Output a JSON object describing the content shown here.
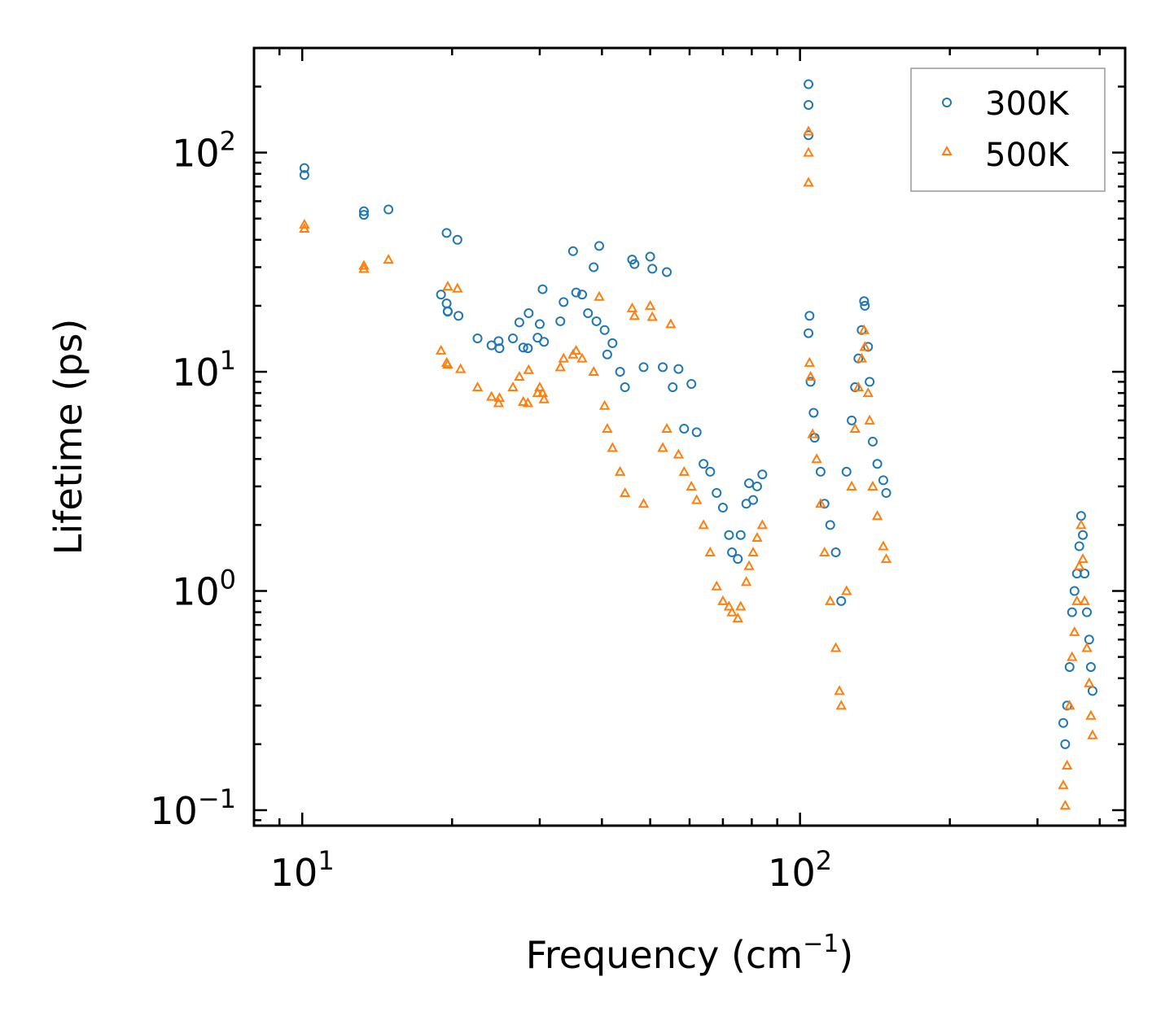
{
  "chart_data": {
    "type": "scatter",
    "title": "",
    "xlabel": "Frequency (cm",
    "xlabel_exp": "−1",
    "xlabel_close": ")",
    "ylabel": "Lifetime (ps)",
    "xscale": "log",
    "yscale": "log",
    "xlim": [
      8.0,
      450
    ],
    "ylim": [
      0.085,
      300
    ],
    "x_ticks": [
      {
        "value": 10,
        "base": "10",
        "exp": "1"
      },
      {
        "value": 100,
        "base": "10",
        "exp": "2"
      }
    ],
    "y_ticks": [
      {
        "value": 0.1,
        "base": "10",
        "exp": "−1"
      },
      {
        "value": 1,
        "base": "10",
        "exp": "0"
      },
      {
        "value": 10,
        "base": "10",
        "exp": "1"
      },
      {
        "value": 100,
        "base": "10",
        "exp": "2"
      }
    ],
    "legend_position": "top-right",
    "series": [
      {
        "name": "300K",
        "marker": "circle",
        "color": "#1f77b4",
        "points": [
          [
            10.1,
            85
          ],
          [
            10.1,
            79
          ],
          [
            13.3,
            54
          ],
          [
            13.3,
            52
          ],
          [
            14.9,
            55
          ],
          [
            19.0,
            22.5
          ],
          [
            19.5,
            20.5
          ],
          [
            19.6,
            18.8
          ],
          [
            19.6,
            18.9
          ],
          [
            19.5,
            43
          ],
          [
            20.5,
            40
          ],
          [
            20.6,
            18
          ],
          [
            22.5,
            14.2
          ],
          [
            24.0,
            13.2
          ],
          [
            24.8,
            13.8
          ],
          [
            24.9,
            12.8
          ],
          [
            26.5,
            14.2
          ],
          [
            27.3,
            16.8
          ],
          [
            27.8,
            12.9
          ],
          [
            28.4,
            12.8
          ],
          [
            28.5,
            18.5
          ],
          [
            29.7,
            14.3
          ],
          [
            30.0,
            16.5
          ],
          [
            30.4,
            23.8
          ],
          [
            30.6,
            13.7
          ],
          [
            33.0,
            17
          ],
          [
            33.5,
            20.8
          ],
          [
            35.0,
            35.5
          ],
          [
            35.5,
            23
          ],
          [
            36.5,
            22.5
          ],
          [
            37.5,
            18.5
          ],
          [
            38.5,
            30
          ],
          [
            39.0,
            17
          ],
          [
            39.5,
            37.5
          ],
          [
            40.5,
            15.5
          ],
          [
            41.0,
            12
          ],
          [
            42.0,
            13.5
          ],
          [
            43.5,
            10
          ],
          [
            44.5,
            8.5
          ],
          [
            46.0,
            32.5
          ],
          [
            46.5,
            31
          ],
          [
            48.5,
            10.5
          ],
          [
            50.0,
            33.5
          ],
          [
            50.5,
            29.5
          ],
          [
            53.0,
            10.5
          ],
          [
            54.0,
            28.5
          ],
          [
            55.5,
            8.5
          ],
          [
            57.0,
            10.3
          ],
          [
            58.5,
            5.5
          ],
          [
            60.5,
            8.8
          ],
          [
            62.0,
            5.3
          ],
          [
            64.0,
            3.8
          ],
          [
            66.0,
            3.5
          ],
          [
            68.0,
            2.8
          ],
          [
            70.0,
            2.4
          ],
          [
            72.0,
            1.8
          ],
          [
            73.0,
            1.5
          ],
          [
            75.0,
            1.4
          ],
          [
            76.0,
            1.8
          ],
          [
            78.0,
            2.5
          ],
          [
            79.0,
            3.1
          ],
          [
            80.5,
            2.6
          ],
          [
            82.0,
            3.0
          ],
          [
            84.0,
            3.4
          ],
          [
            104.0,
            205
          ],
          [
            104.0,
            165
          ],
          [
            104.0,
            120
          ],
          [
            104.5,
            18
          ],
          [
            104.0,
            15
          ],
          [
            105.0,
            9
          ],
          [
            106.5,
            6.5
          ],
          [
            107.0,
            5
          ],
          [
            110.0,
            3.5
          ],
          [
            112.0,
            2.5
          ],
          [
            115.0,
            2.0
          ],
          [
            118.0,
            1.5
          ],
          [
            121.0,
            0.9
          ],
          [
            124.0,
            3.5
          ],
          [
            127.0,
            6.0
          ],
          [
            129.0,
            8.5
          ],
          [
            131.0,
            11.5
          ],
          [
            133.0,
            15.5
          ],
          [
            134.5,
            21
          ],
          [
            135.0,
            20
          ],
          [
            137.0,
            13
          ],
          [
            138.0,
            9
          ],
          [
            140.0,
            4.8
          ],
          [
            143.0,
            3.8
          ],
          [
            147.0,
            3.2
          ],
          [
            149.0,
            2.8
          ],
          [
            338.0,
            0.25
          ],
          [
            341.0,
            0.2
          ],
          [
            344.0,
            0.3
          ],
          [
            348.0,
            0.45
          ],
          [
            352.0,
            0.8
          ],
          [
            356.0,
            1.0
          ],
          [
            360.0,
            1.2
          ],
          [
            364.0,
            1.6
          ],
          [
            367.0,
            2.2
          ],
          [
            370.0,
            1.8
          ],
          [
            373.0,
            1.2
          ],
          [
            377.0,
            0.8
          ],
          [
            381.0,
            0.6
          ],
          [
            384.0,
            0.45
          ],
          [
            387.0,
            0.35
          ]
        ]
      },
      {
        "name": "500K",
        "marker": "triangle",
        "color": "#ff7f0e",
        "points": [
          [
            10.1,
            47
          ],
          [
            10.1,
            45
          ],
          [
            13.3,
            30.5
          ],
          [
            13.3,
            29.5
          ],
          [
            14.9,
            32.5
          ],
          [
            19.0,
            12.5
          ],
          [
            19.5,
            11
          ],
          [
            19.6,
            10.8
          ],
          [
            19.6,
            24.5
          ],
          [
            20.5,
            24
          ],
          [
            20.8,
            10.3
          ],
          [
            22.5,
            8.5
          ],
          [
            24.0,
            7.7
          ],
          [
            24.8,
            7.2
          ],
          [
            24.9,
            7.6
          ],
          [
            26.5,
            8.5
          ],
          [
            27.3,
            9.5
          ],
          [
            27.8,
            7.3
          ],
          [
            28.4,
            7.2
          ],
          [
            28.5,
            10.2
          ],
          [
            29.7,
            8
          ],
          [
            30.0,
            8.5
          ],
          [
            30.4,
            8.0
          ],
          [
            30.6,
            7.5
          ],
          [
            33.0,
            10.5
          ],
          [
            33.5,
            11.5
          ],
          [
            35.0,
            12
          ],
          [
            35.5,
            12.5
          ],
          [
            36.5,
            11.5
          ],
          [
            38.5,
            10
          ],
          [
            39.5,
            22
          ],
          [
            40.5,
            7
          ],
          [
            41.0,
            5.5
          ],
          [
            42.0,
            4.5
          ],
          [
            43.5,
            3.5
          ],
          [
            44.5,
            2.8
          ],
          [
            46.0,
            19.5
          ],
          [
            46.5,
            18
          ],
          [
            48.5,
            2.5
          ],
          [
            50.0,
            20
          ],
          [
            50.5,
            17.8
          ],
          [
            53.0,
            4.5
          ],
          [
            54.0,
            5.5
          ],
          [
            55.0,
            16.5
          ],
          [
            57.0,
            4.2
          ],
          [
            58.5,
            3.5
          ],
          [
            60.5,
            3.0
          ],
          [
            62.0,
            2.6
          ],
          [
            64.0,
            2.0
          ],
          [
            66.0,
            1.5
          ],
          [
            68.0,
            1.05
          ],
          [
            70.0,
            0.9
          ],
          [
            72.0,
            0.85
          ],
          [
            73.0,
            0.8
          ],
          [
            75.0,
            0.75
          ],
          [
            76.0,
            0.85
          ],
          [
            78.0,
            1.1
          ],
          [
            79.0,
            1.3
          ],
          [
            80.5,
            1.5
          ],
          [
            82.0,
            1.75
          ],
          [
            84.0,
            2.0
          ],
          [
            104.0,
            125
          ],
          [
            104.0,
            100
          ],
          [
            104.0,
            73
          ],
          [
            104.5,
            11
          ],
          [
            105.0,
            9.5
          ],
          [
            106.0,
            5.2
          ],
          [
            108.0,
            4.0
          ],
          [
            110.0,
            2.5
          ],
          [
            112.0,
            1.5
          ],
          [
            115.0,
            0.9
          ],
          [
            118.0,
            0.55
          ],
          [
            120.0,
            0.35
          ],
          [
            121.0,
            0.3
          ],
          [
            124.0,
            1.0
          ],
          [
            127.0,
            3.0
          ],
          [
            129.0,
            5.5
          ],
          [
            131.0,
            8.5
          ],
          [
            133.0,
            11.5
          ],
          [
            134.5,
            15.5
          ],
          [
            135.0,
            13
          ],
          [
            137.0,
            8
          ],
          [
            138.0,
            6
          ],
          [
            140.0,
            3.0
          ],
          [
            143.0,
            2.2
          ],
          [
            147.0,
            1.6
          ],
          [
            149.0,
            1.4
          ],
          [
            338.0,
            0.13
          ],
          [
            341.0,
            0.105
          ],
          [
            344.0,
            0.16
          ],
          [
            348.0,
            0.3
          ],
          [
            352.0,
            0.5
          ],
          [
            356.0,
            0.65
          ],
          [
            360.0,
            0.9
          ],
          [
            364.0,
            1.3
          ],
          [
            367.0,
            2.0
          ],
          [
            370.0,
            1.4
          ],
          [
            373.0,
            0.9
          ],
          [
            377.0,
            0.55
          ],
          [
            381.0,
            0.38
          ],
          [
            384.0,
            0.27
          ],
          [
            387.0,
            0.22
          ]
        ]
      }
    ]
  }
}
